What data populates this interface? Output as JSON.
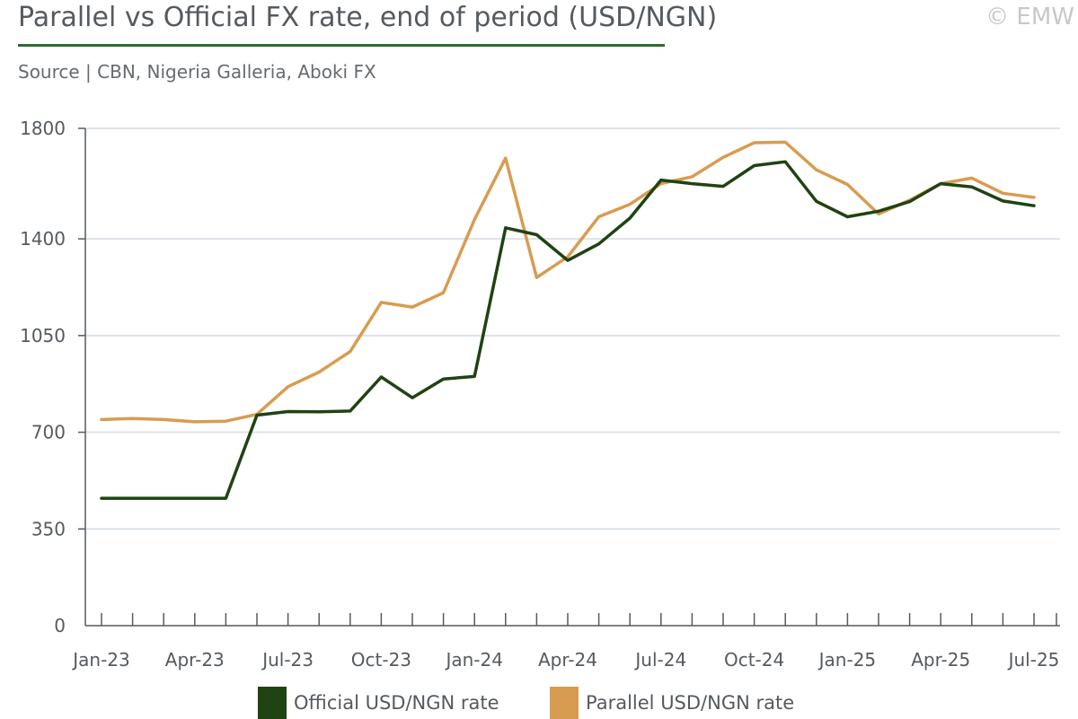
{
  "header": {
    "title": "Parallel vs Official FX rate, end of period (USD/NGN)",
    "copyright": "© EMW",
    "source": "Source | CBN, Nigeria Galleria, Aboki FX"
  },
  "colors": {
    "official": "#1f4312",
    "parallel": "#d89c50",
    "grid": "#dde3ea",
    "axis": "#555a5f",
    "title_rule": "#2e6b2e"
  },
  "chart_data": {
    "type": "line",
    "title": "Parallel vs Official FX rate, end of period (USD/NGN)",
    "xlabel": "",
    "ylabel": "",
    "ylim": [
      0,
      1800
    ],
    "yticks": [
      0,
      350,
      700,
      1050,
      1400,
      1800
    ],
    "x": [
      "Jan-23",
      "Feb-23",
      "Mar-23",
      "Apr-23",
      "May-23",
      "Jun-23",
      "Jul-23",
      "Aug-23",
      "Sep-23",
      "Oct-23",
      "Nov-23",
      "Dec-23",
      "Jan-24",
      "Feb-24",
      "Mar-24",
      "Apr-24",
      "May-24",
      "Jun-24",
      "Jul-24",
      "Aug-24",
      "Sep-24",
      "Oct-24",
      "Nov-24",
      "Dec-24",
      "Jan-25",
      "Feb-25",
      "Mar-25",
      "Apr-25",
      "May-25",
      "Jun-25",
      "Jul-25"
    ],
    "xtick_labels": [
      "Jan-23",
      "Apr-23",
      "Jul-23",
      "Oct-23",
      "Jan-24",
      "Apr-24",
      "Jul-24",
      "Oct-24",
      "Jan-25",
      "Apr-25",
      "Jul-25"
    ],
    "grid": true,
    "legend_position": "bottom",
    "series": [
      {
        "name": "Official USD/NGN rate",
        "values": [
          461,
          461,
          461,
          461,
          461,
          762,
          775,
          774,
          777,
          900,
          825,
          893,
          902,
          1440,
          1415,
          1322,
          1382,
          1475,
          1613,
          1600,
          1590,
          1665,
          1679,
          1536,
          1480,
          1500,
          1535,
          1600,
          1588,
          1537,
          1520
        ]
      },
      {
        "name": "Parallel USD/NGN rate",
        "values": [
          746,
          750,
          746,
          738,
          740,
          765,
          865,
          918,
          992,
          1170,
          1153,
          1205,
          1470,
          1692,
          1260,
          1335,
          1480,
          1525,
          1600,
          1625,
          1695,
          1748,
          1750,
          1650,
          1597,
          1490,
          1540,
          1600,
          1620,
          1565,
          1550
        ]
      }
    ]
  },
  "legend": {
    "items": [
      "Official USD/NGN rate",
      "Parallel USD/NGN rate"
    ]
  }
}
